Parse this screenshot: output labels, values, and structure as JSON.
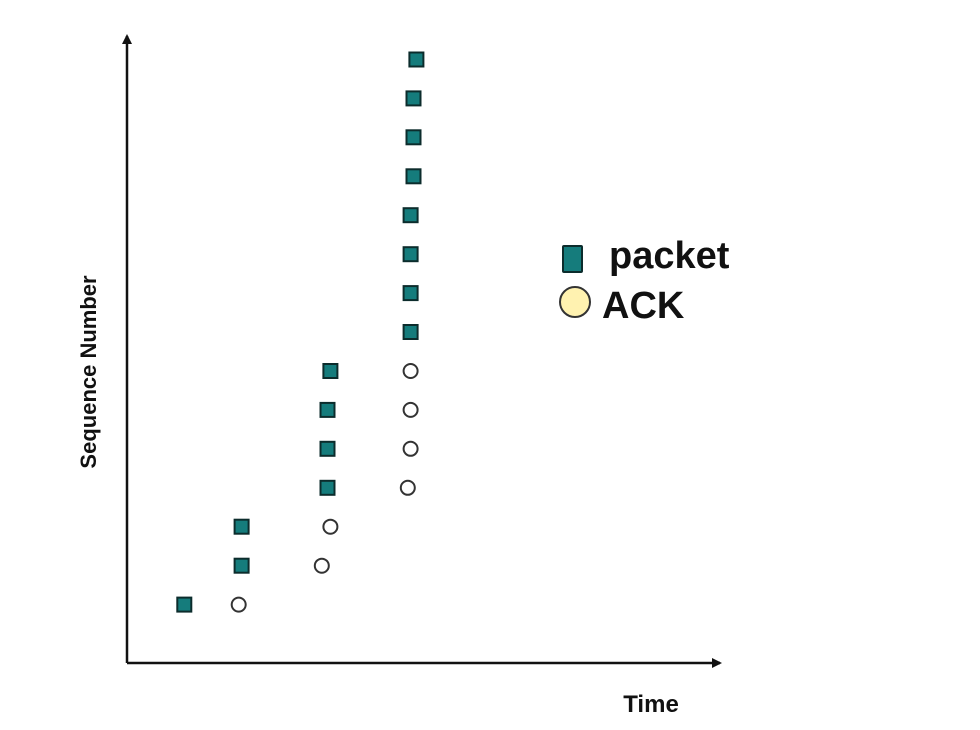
{
  "chart_data": {
    "type": "scatter",
    "title": "",
    "xlabel": "Time",
    "ylabel": "Sequence Number",
    "grid": false,
    "legend_position": "top-right",
    "x_ticks_shown": false,
    "y_ticks_shown": false,
    "xlim": [
      0,
      20
    ],
    "ylim": [
      0,
      16
    ],
    "series": [
      {
        "name": "packet",
        "marker": "square",
        "color": "#157c7c",
        "points": [
          {
            "x": 2.0,
            "y": 1.5
          },
          {
            "x": 4.0,
            "y": 2.5
          },
          {
            "x": 4.0,
            "y": 3.5
          },
          {
            "x": 7.0,
            "y": 4.5
          },
          {
            "x": 7.0,
            "y": 5.5
          },
          {
            "x": 7.0,
            "y": 6.5
          },
          {
            "x": 7.1,
            "y": 7.5
          },
          {
            "x": 9.9,
            "y": 8.5
          },
          {
            "x": 9.9,
            "y": 9.5
          },
          {
            "x": 9.9,
            "y": 10.5
          },
          {
            "x": 9.9,
            "y": 11.5
          },
          {
            "x": 10.0,
            "y": 12.5
          },
          {
            "x": 10.0,
            "y": 13.5
          },
          {
            "x": 10.0,
            "y": 14.5
          },
          {
            "x": 10.1,
            "y": 15.5
          }
        ]
      },
      {
        "name": "ACK",
        "marker": "circle",
        "color": "#fff2b0",
        "points": [
          {
            "x": 3.9,
            "y": 1.5
          },
          {
            "x": 6.8,
            "y": 2.5
          },
          {
            "x": 7.1,
            "y": 3.5
          },
          {
            "x": 9.8,
            "y": 4.5
          },
          {
            "x": 9.9,
            "y": 5.5
          },
          {
            "x": 9.9,
            "y": 6.5
          },
          {
            "x": 9.9,
            "y": 7.5
          }
        ]
      }
    ]
  },
  "colors": {
    "packet_fill": "#157c7c",
    "packet_stroke": "#0c2c2c",
    "ack_fill_legend": "#fff2b0",
    "ack_fill_plot": "#ffffff",
    "ack_stroke": "#333333",
    "axis": "#111111"
  }
}
